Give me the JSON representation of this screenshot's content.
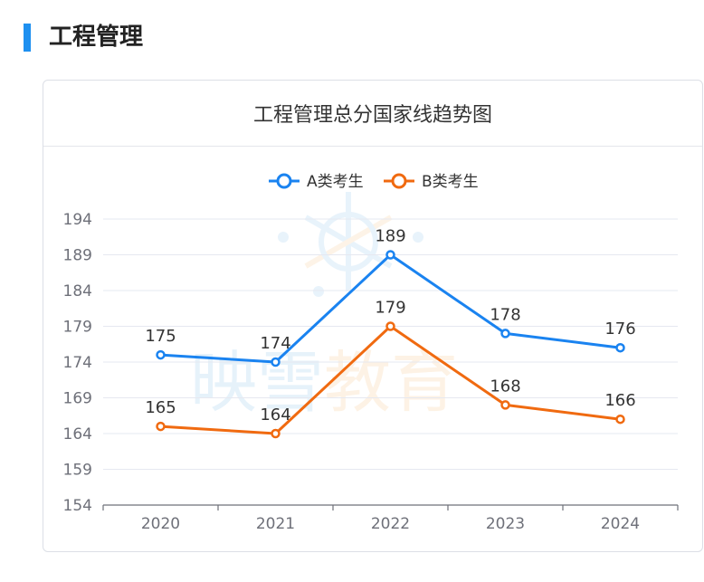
{
  "section": {
    "title": "工程管理"
  },
  "card": {
    "title": "工程管理总分国家线趋势图"
  },
  "watermark": {
    "text": "映雪教育",
    "part1": "映雪",
    "part2": "教育"
  },
  "colors": {
    "accent": "#1e90f0",
    "seriesA": "#1a83f0",
    "seriesB": "#f06a10",
    "grid": "#e6e8f0",
    "axis": "#6e7079"
  },
  "chart_data": {
    "type": "line",
    "title": "工程管理总分国家线趋势图",
    "categories": [
      "2020",
      "2021",
      "2022",
      "2023",
      "2024"
    ],
    "series": [
      {
        "name": "A类考生",
        "values": [
          175,
          174,
          189,
          178,
          176
        ],
        "color": "#1a83f0"
      },
      {
        "name": "B类考生",
        "values": [
          165,
          164,
          179,
          168,
          166
        ],
        "color": "#f06a10"
      }
    ],
    "yticks": [
      154,
      159,
      164,
      169,
      174,
      179,
      184,
      189,
      194
    ],
    "ylim": [
      154,
      194
    ],
    "xlabel": "",
    "ylabel": "",
    "grid": true,
    "legend": "top-center",
    "data_labels": true
  }
}
